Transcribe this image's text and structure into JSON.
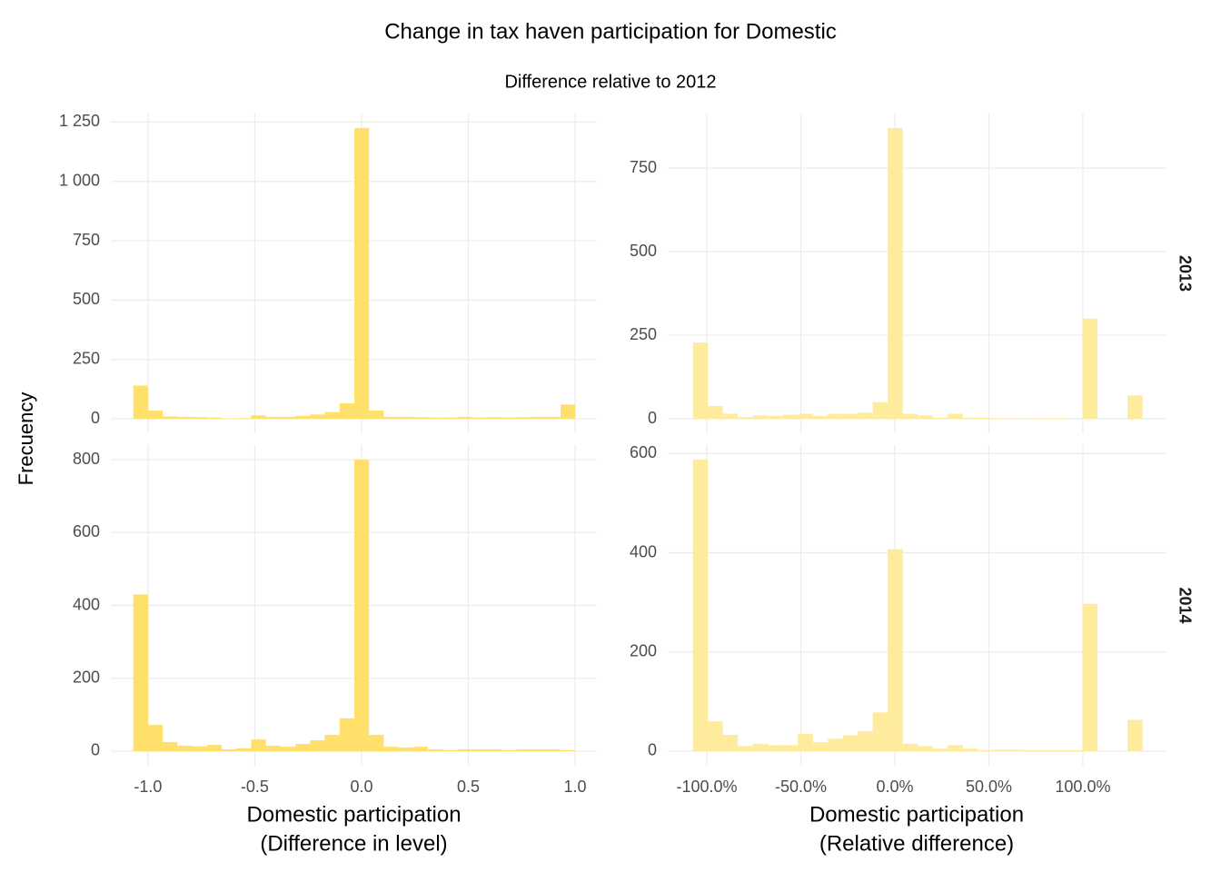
{
  "title": "Change in tax haven participation for Domestic",
  "subtitle": "Difference relative to 2012",
  "y_label": "Frecuency",
  "chart_data": [
    {
      "type": "histogram",
      "color": "#FFE06A",
      "bins": [
        -1.069,
        -1.0,
        -0.931,
        -0.862,
        -0.793,
        -0.724,
        -0.655,
        -0.586,
        -0.517,
        -0.448,
        -0.379,
        -0.31,
        -0.241,
        -0.172,
        -0.103,
        -0.034,
        0.035,
        0.104,
        0.173,
        0.242,
        0.311,
        0.38,
        0.449,
        0.518,
        0.587,
        0.656,
        0.725,
        0.794,
        0.863,
        0.932,
        1.001
      ],
      "values": [
        140,
        35,
        10,
        8,
        7,
        5,
        2,
        3,
        15,
        8,
        8,
        12,
        18,
        28,
        65,
        1225,
        35,
        8,
        8,
        7,
        5,
        5,
        8,
        5,
        7,
        5,
        7,
        8,
        8,
        60
      ],
      "xlim": [
        -1.174,
        1.102
      ],
      "ylim": [
        -61,
        1286
      ],
      "yticks": [
        0,
        250,
        500,
        750,
        {
          "value": 1000,
          "label": "1 000"
        },
        {
          "value": 1250,
          "label": "1 250"
        }
      ],
      "grid": true
    },
    {
      "type": "histogram",
      "color": "#FFEB9C",
      "strip": "2013",
      "bins": [
        -107.4,
        -99.43,
        -91.46,
        -83.49,
        -75.52,
        -67.55,
        -59.58,
        -51.61,
        -43.64,
        -35.67,
        -27.7,
        -19.73,
        -11.76,
        -3.79,
        4.18,
        12.15,
        20.12,
        28.09,
        36.06,
        44.03,
        52,
        59.97,
        67.94,
        75.91,
        83.88,
        91.85,
        99.82,
        107.79,
        115.76,
        123.73,
        131.7
      ],
      "values": [
        228,
        38,
        15,
        5,
        10,
        8,
        12,
        15,
        8,
        15,
        15,
        18,
        50,
        870,
        15,
        10,
        3,
        15,
        3,
        3,
        2,
        1,
        1,
        2,
        2,
        0,
        300,
        0,
        0,
        70
      ],
      "xlim": [
        -120.8,
        144
      ],
      "ylim": [
        -43.5,
        913.5
      ],
      "yticks": [
        0,
        250,
        500,
        750
      ],
      "grid": true
    },
    {
      "type": "histogram",
      "color": "#FFE06A",
      "bins": [
        -1.069,
        -1.0,
        -0.931,
        -0.862,
        -0.793,
        -0.724,
        -0.655,
        -0.586,
        -0.517,
        -0.448,
        -0.379,
        -0.31,
        -0.241,
        -0.172,
        -0.103,
        -0.034,
        0.035,
        0.104,
        0.173,
        0.242,
        0.311,
        0.38,
        0.449,
        0.518,
        0.587,
        0.656,
        0.725,
        0.794,
        0.863,
        0.932,
        1.001
      ],
      "values": [
        430,
        72,
        25,
        15,
        13,
        17,
        5,
        8,
        32,
        15,
        12,
        20,
        30,
        45,
        90,
        800,
        45,
        12,
        10,
        12,
        5,
        3,
        5,
        5,
        5,
        3,
        5,
        5,
        5,
        3
      ],
      "xlim": [
        -1.174,
        1.102
      ],
      "ylim": [
        -40,
        840
      ],
      "xticks": [
        {
          "value": -1,
          "label": "-1.0"
        },
        -0.5,
        {
          "value": 0,
          "label": "0.0"
        },
        0.5,
        {
          "value": 1,
          "label": "1.0"
        }
      ],
      "yticks": [
        0,
        200,
        400,
        600,
        800
      ],
      "grid": true,
      "xlabel": [
        "Domestic participation",
        "(Difference in level)"
      ]
    },
    {
      "type": "histogram",
      "color": "#FFEB9C",
      "strip": "2014",
      "bins": [
        -107.4,
        -99.43,
        -91.46,
        -83.49,
        -75.52,
        -67.55,
        -59.58,
        -51.61,
        -43.64,
        -35.67,
        -27.7,
        -19.73,
        -11.76,
        -3.79,
        4.18,
        12.15,
        20.12,
        28.09,
        36.06,
        44.03,
        52,
        59.97,
        67.94,
        75.91,
        83.88,
        91.85,
        99.82,
        107.79,
        115.76,
        123.73,
        131.7
      ],
      "values": [
        588,
        60,
        33,
        10,
        15,
        12,
        12,
        35,
        18,
        25,
        32,
        40,
        78,
        407,
        15,
        10,
        5,
        12,
        5,
        2,
        3,
        3,
        2,
        2,
        2,
        2,
        297,
        0,
        0,
        63
      ],
      "xlim": [
        -120.8,
        144
      ],
      "ylim": [
        -29.4,
        617
      ],
      "xticks": [
        {
          "value": -100,
          "label": "-100.0%"
        },
        {
          "value": -50,
          "label": "-50.0%"
        },
        {
          "value": 0,
          "label": "0.0%"
        },
        {
          "value": 50,
          "label": "50.0%"
        },
        {
          "value": 100,
          "label": "100.0%"
        }
      ],
      "yticks": [
        0,
        200,
        400,
        600
      ],
      "grid": true,
      "xlabel": [
        "Domestic participation",
        "(Relative difference)"
      ]
    }
  ]
}
